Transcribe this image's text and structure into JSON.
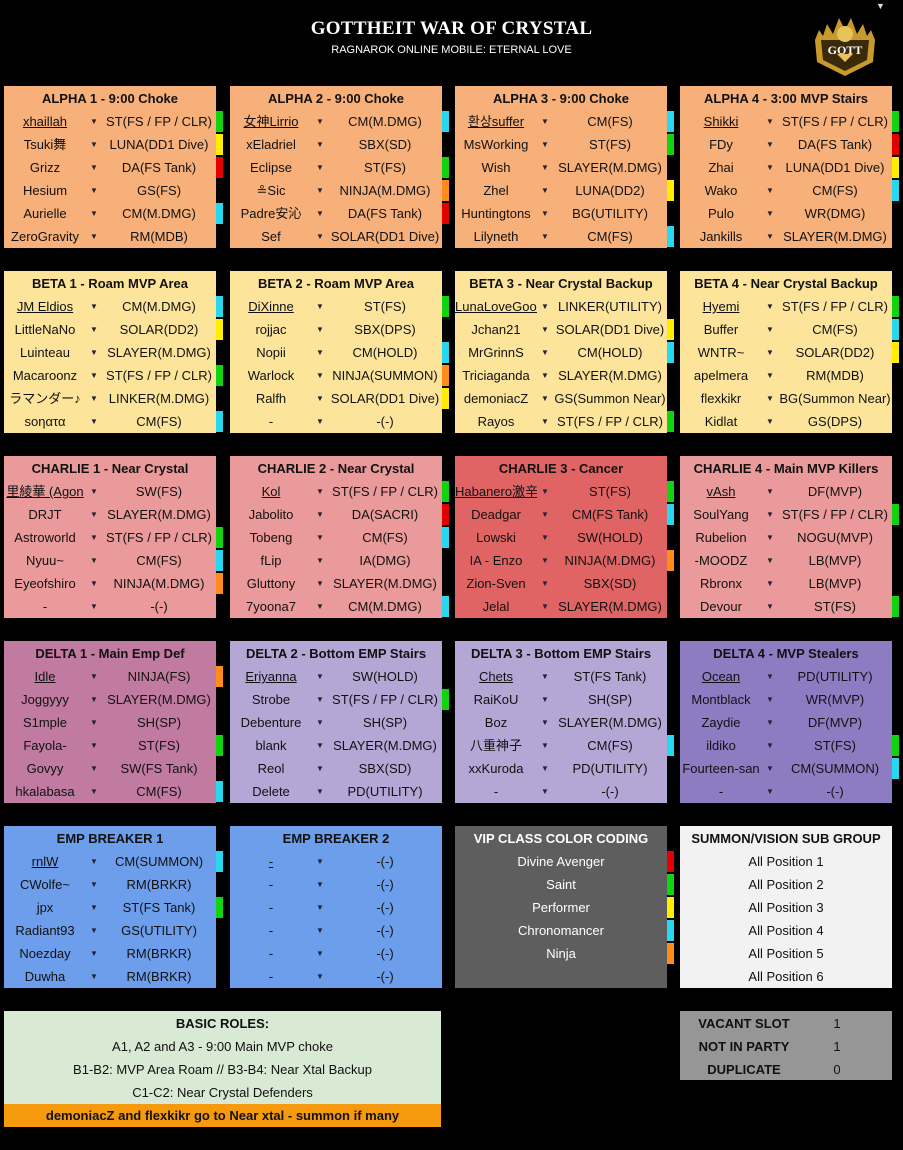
{
  "header": {
    "title": "GOTTHEIT WAR OF CRYSTAL",
    "subtitle": "RAGNAROK ONLINE MOBILE: ETERNAL LOVE",
    "logo_text": "GOTTHEIT"
  },
  "colors": {
    "alpha": "#f7b07a",
    "beta": "#fde49b",
    "charlie": "#ea9a9a",
    "charlie3": "#e06464",
    "delta1": "#c27ba0",
    "delta2": "#b4a7d6",
    "delta3": "#b4a7d6",
    "delta4": "#8e7cc3",
    "emp": "#6d9eeb",
    "vip_divine_avenger": "#e30000",
    "vip_saint": "#10d410",
    "vip_performer": "#ffee00",
    "vip_chronomancer": "#28d8ee",
    "vip_ninja": "#ff8c1a"
  },
  "panels": [
    {
      "title": "ALPHA 1 - 9:00 Choke",
      "color": "alpha",
      "rows": [
        {
          "name": "xhaillah",
          "role": "ST(FS / FP / CLR)",
          "mark": "saint",
          "u": true
        },
        {
          "name": "Tsuki舞",
          "role": "LUNA(DD1 Dive)",
          "mark": "performer"
        },
        {
          "name": "Grizz",
          "role": "DA(FS Tank)",
          "mark": "divine"
        },
        {
          "name": "Hesium",
          "role": "GS(FS)",
          "mark": ""
        },
        {
          "name": "Aurielle",
          "role": "CM(M.DMG)",
          "mark": "chrono"
        },
        {
          "name": "ZeroGravity",
          "role": "RM(MDB)",
          "mark": ""
        }
      ]
    },
    {
      "title": "ALPHA 2 - 9:00 Choke",
      "color": "alpha",
      "rows": [
        {
          "name": "女神Lirrio",
          "role": "CM(M.DMG)",
          "mark": "chrono",
          "u": true
        },
        {
          "name": "xEladriel",
          "role": "SBX(SD)",
          "mark": ""
        },
        {
          "name": "Eclipse",
          "role": "ST(FS)",
          "mark": "saint"
        },
        {
          "name": "≗Sic",
          "role": "NINJA(M.DMG)",
          "mark": "ninja"
        },
        {
          "name": "Padre安沁",
          "role": "DA(FS Tank)",
          "mark": "divine"
        },
        {
          "name": "Sef",
          "role": "SOLAR(DD1 Dive)",
          "mark": ""
        }
      ]
    },
    {
      "title": "ALPHA 3 - 9:00 Choke",
      "color": "alpha",
      "rows": [
        {
          "name": "환상suffer",
          "role": "CM(FS)",
          "mark": "chrono",
          "u": true
        },
        {
          "name": "MsWorking",
          "role": "ST(FS)",
          "mark": "saint"
        },
        {
          "name": "Wish",
          "role": "SLAYER(M.DMG)",
          "mark": ""
        },
        {
          "name": "Zhel",
          "role": "LUNA(DD2)",
          "mark": "performer"
        },
        {
          "name": "Huntingtons",
          "role": "BG(UTILITY)",
          "mark": ""
        },
        {
          "name": "Lilyneth",
          "role": "CM(FS)",
          "mark": "chrono"
        }
      ]
    },
    {
      "title": "ALPHA 4 - 3:00 MVP Stairs",
      "color": "alpha",
      "rows": [
        {
          "name": "Shikki",
          "role": "ST(FS / FP / CLR)",
          "mark": "saint",
          "u": true
        },
        {
          "name": "FDy",
          "role": "DA(FS Tank)",
          "mark": "divine"
        },
        {
          "name": "Zhai",
          "role": "LUNA(DD1 Dive)",
          "mark": "performer"
        },
        {
          "name": "Wako",
          "role": "CM(FS)",
          "mark": "chrono"
        },
        {
          "name": "Pulo",
          "role": "WR(DMG)",
          "mark": ""
        },
        {
          "name": "Jankills",
          "role": "SLAYER(M.DMG)",
          "mark": ""
        }
      ]
    },
    {
      "title": "BETA 1 - Roam MVP Area",
      "color": "beta",
      "rows": [
        {
          "name": "JM Eldios",
          "role": "CM(M.DMG)",
          "mark": "chrono",
          "u": true
        },
        {
          "name": "LittleNaNo",
          "role": "SOLAR(DD2)",
          "mark": "performer"
        },
        {
          "name": "Luinteau",
          "role": "SLAYER(M.DMG)",
          "mark": ""
        },
        {
          "name": "Macaroonz",
          "role": "ST(FS / FP / CLR)",
          "mark": "saint"
        },
        {
          "name": "ラマンダー♪",
          "role": "LINKER(M.DMG)",
          "mark": ""
        },
        {
          "name": "soηατα",
          "role": "CM(FS)",
          "mark": "chrono"
        }
      ]
    },
    {
      "title": "BETA 2 - Roam MVP Area",
      "color": "beta",
      "rows": [
        {
          "name": "DiXinne",
          "role": "ST(FS)",
          "mark": "saint",
          "u": true
        },
        {
          "name": "rojjac",
          "role": "SBX(DPS)",
          "mark": ""
        },
        {
          "name": "Nopii",
          "role": "CM(HOLD)",
          "mark": "chrono"
        },
        {
          "name": "Warlock",
          "role": "NINJA(SUMMON)",
          "mark": "ninja"
        },
        {
          "name": "Ralfh",
          "role": "SOLAR(DD1 Dive)",
          "mark": "performer"
        },
        {
          "name": "-",
          "role": "-(-)",
          "mark": ""
        }
      ]
    },
    {
      "title": "BETA 3 - Near Crystal Backup",
      "color": "beta",
      "rows": [
        {
          "name": "LunaLoveGood",
          "role": "LINKER(UTILITY)",
          "mark": "",
          "u": true
        },
        {
          "name": "Jchan21",
          "role": "SOLAR(DD1 Dive)",
          "mark": "performer"
        },
        {
          "name": "MrGrinnS",
          "role": "CM(HOLD)",
          "mark": "chrono"
        },
        {
          "name": "Triciaganda",
          "role": "SLAYER(M.DMG)",
          "mark": ""
        },
        {
          "name": "demoniacZ",
          "role": "GS(Summon Near)",
          "mark": ""
        },
        {
          "name": "Rayos",
          "role": "ST(FS / FP / CLR)",
          "mark": "saint"
        }
      ]
    },
    {
      "title": "BETA 4 - Near Crystal Backup",
      "color": "beta",
      "rows": [
        {
          "name": "Hyemi",
          "role": "ST(FS / FP / CLR)",
          "mark": "saint",
          "u": true
        },
        {
          "name": "Buffer",
          "role": "CM(FS)",
          "mark": "chrono"
        },
        {
          "name": "WNTR~",
          "role": "SOLAR(DD2)",
          "mark": "performer"
        },
        {
          "name": "apelmera",
          "role": "RM(MDB)",
          "mark": ""
        },
        {
          "name": "flexkikr",
          "role": "BG(Summon Near)",
          "mark": ""
        },
        {
          "name": "Kidlat",
          "role": "GS(DPS)",
          "mark": ""
        }
      ]
    },
    {
      "title": "CHARLIE 1 - Near Crystal",
      "color": "charlie",
      "rows": [
        {
          "name": "里綾華 (Agon",
          "role": "SW(FS)",
          "mark": "",
          "u": true
        },
        {
          "name": "DRJT",
          "role": "SLAYER(M.DMG)",
          "mark": ""
        },
        {
          "name": "Astroworld",
          "role": "ST(FS / FP / CLR)",
          "mark": "saint"
        },
        {
          "name": "Nyuu~",
          "role": "CM(FS)",
          "mark": "chrono"
        },
        {
          "name": "Eyeofshiro",
          "role": "NINJA(M.DMG)",
          "mark": "ninja"
        },
        {
          "name": "-",
          "role": "-(-)",
          "mark": ""
        }
      ]
    },
    {
      "title": "CHARLIE 2 - Near Crystal",
      "color": "charlie",
      "rows": [
        {
          "name": "Kol",
          "role": "ST(FS / FP / CLR)",
          "mark": "saint",
          "u": true
        },
        {
          "name": "Jabolito",
          "role": "DA(SACRI)",
          "mark": "divine"
        },
        {
          "name": "Tobeng",
          "role": "CM(FS)",
          "mark": "chrono"
        },
        {
          "name": "fLip",
          "role": "IA(DMG)",
          "mark": ""
        },
        {
          "name": "Gluttony",
          "role": "SLAYER(M.DMG)",
          "mark": ""
        },
        {
          "name": "7yoona7",
          "role": "CM(M.DMG)",
          "mark": "chrono"
        }
      ]
    },
    {
      "title": "CHARLIE 3 - Cancer",
      "color": "charlie3",
      "rows": [
        {
          "name": "Habanero激辛",
          "role": "ST(FS)",
          "mark": "saint",
          "u": true
        },
        {
          "name": "Deadgar",
          "role": "CM(FS Tank)",
          "mark": "chrono"
        },
        {
          "name": "Lowski",
          "role": "SW(HOLD)",
          "mark": ""
        },
        {
          "name": "IA - Enzo",
          "role": "NINJA(M.DMG)",
          "mark": "ninja"
        },
        {
          "name": "Zion-Sven",
          "role": "SBX(SD)",
          "mark": ""
        },
        {
          "name": "Jelal",
          "role": "SLAYER(M.DMG)",
          "mark": ""
        }
      ]
    },
    {
      "title": "CHARLIE 4 - Main MVP Killers",
      "color": "charlie",
      "rows": [
        {
          "name": "vAsh",
          "role": "DF(MVP)",
          "mark": "",
          "u": true
        },
        {
          "name": "SoulYang",
          "role": "ST(FS / FP / CLR)",
          "mark": "saint"
        },
        {
          "name": "Rubelion",
          "role": "NOGU(MVP)",
          "mark": ""
        },
        {
          "name": "-MOODZ",
          "role": "LB(MVP)",
          "mark": ""
        },
        {
          "name": "Rbronx",
          "role": "LB(MVP)",
          "mark": ""
        },
        {
          "name": "Devour",
          "role": "ST(FS)",
          "mark": "saint"
        }
      ]
    },
    {
      "title": "DELTA 1 - Main Emp Def",
      "color": "delta1",
      "rows": [
        {
          "name": "Idle",
          "role": "NINJA(FS)",
          "mark": "ninja",
          "u": true
        },
        {
          "name": "Joggyyy",
          "role": "SLAYER(M.DMG)",
          "mark": ""
        },
        {
          "name": "S1mple",
          "role": "SH(SP)",
          "mark": ""
        },
        {
          "name": "Fayola-",
          "role": "ST(FS)",
          "mark": "saint"
        },
        {
          "name": "Govyy",
          "role": "SW(FS Tank)",
          "mark": ""
        },
        {
          "name": "hkalabasa",
          "role": "CM(FS)",
          "mark": "chrono"
        }
      ]
    },
    {
      "title": "DELTA 2 - Bottom EMP Stairs",
      "color": "delta2",
      "rows": [
        {
          "name": "Eriyanna",
          "role": "SW(HOLD)",
          "mark": "",
          "u": true
        },
        {
          "name": "Strobe",
          "role": "ST(FS / FP / CLR)",
          "mark": "saint"
        },
        {
          "name": "Debenture",
          "role": "SH(SP)",
          "mark": ""
        },
        {
          "name": "blank",
          "role": "SLAYER(M.DMG)",
          "mark": ""
        },
        {
          "name": "Reol",
          "role": "SBX(SD)",
          "mark": ""
        },
        {
          "name": "Delete",
          "role": "PD(UTILITY)",
          "mark": ""
        }
      ]
    },
    {
      "title": "DELTA 3 - Bottom EMP Stairs",
      "color": "delta3",
      "rows": [
        {
          "name": "Chets",
          "role": "ST(FS Tank)",
          "mark": "",
          "u": true
        },
        {
          "name": "RaiKoU",
          "role": "SH(SP)",
          "mark": ""
        },
        {
          "name": "Boz",
          "role": "SLAYER(M.DMG)",
          "mark": ""
        },
        {
          "name": "八重神子",
          "role": "CM(FS)",
          "mark": "chrono"
        },
        {
          "name": "xxKuroda",
          "role": "PD(UTILITY)",
          "mark": ""
        },
        {
          "name": "-",
          "role": "-(-)",
          "mark": ""
        }
      ]
    },
    {
      "title": "DELTA 4 - MVP Stealers",
      "color": "delta4",
      "rows": [
        {
          "name": "Ocean",
          "role": "PD(UTILITY)",
          "mark": "",
          "u": true
        },
        {
          "name": "Montblack",
          "role": "WR(MVP)",
          "mark": ""
        },
        {
          "name": "Zaydie",
          "role": "DF(MVP)",
          "mark": ""
        },
        {
          "name": "ildiko",
          "role": "ST(FS)",
          "mark": "saint"
        },
        {
          "name": "Fourteen-san",
          "role": "CM(SUMMON)",
          "mark": "chrono"
        },
        {
          "name": "-",
          "role": "-(-)",
          "mark": ""
        }
      ]
    },
    {
      "title": "EMP BREAKER 1",
      "color": "emp",
      "rows": [
        {
          "name": "rnlW",
          "role": "CM(SUMMON)",
          "mark": "chrono",
          "u": true
        },
        {
          "name": "CWolfe~",
          "role": "RM(BRKR)",
          "mark": ""
        },
        {
          "name": "jpx",
          "role": "ST(FS Tank)",
          "mark": "saint"
        },
        {
          "name": "Radiant93",
          "role": "GS(UTILITY)",
          "mark": ""
        },
        {
          "name": "Noezday",
          "role": "RM(BRKR)",
          "mark": ""
        },
        {
          "name": "Duwha",
          "role": "RM(BRKR)",
          "mark": ""
        }
      ]
    },
    {
      "title": "EMP BREAKER 2",
      "color": "emp",
      "rows": [
        {
          "name": "-",
          "role": "-(-)",
          "mark": "",
          "u": true
        },
        {
          "name": "-",
          "role": "-(-)",
          "mark": ""
        },
        {
          "name": "-",
          "role": "-(-)",
          "mark": ""
        },
        {
          "name": "-",
          "role": "-(-)",
          "mark": ""
        },
        {
          "name": "-",
          "role": "-(-)",
          "mark": ""
        },
        {
          "name": "-",
          "role": "-(-)",
          "mark": ""
        }
      ]
    }
  ],
  "vip": {
    "title": "VIP CLASS COLOR CODING",
    "items": [
      {
        "label": "Divine Avenger",
        "mark": "divine"
      },
      {
        "label": "Saint",
        "mark": "saint"
      },
      {
        "label": "Performer",
        "mark": "performer"
      },
      {
        "label": "Chronomancer",
        "mark": "chrono"
      },
      {
        "label": "Ninja",
        "mark": "ninja"
      }
    ]
  },
  "summon": {
    "title": "SUMMON/VISION SUB GROUP",
    "items": [
      "All Position 1",
      "All Position 2",
      "All Position 3",
      "All Position 4",
      "All Position 5",
      "All Position 6"
    ]
  },
  "roles": {
    "title": "BASIC ROLES:",
    "lines": [
      "A1, A2 and A3 - 9:00 Main MVP choke",
      "B1-B2: MVP Area Roam // B3-B4: Near Xtal Backup",
      "C1-C2: Near Crystal Defenders"
    ],
    "note": "demoniacZ and flexkikr go to Near xtal - summon if many"
  },
  "counts": [
    {
      "label": "VACANT SLOT",
      "value": "1"
    },
    {
      "label": "NOT IN PARTY",
      "value": "1"
    },
    {
      "label": "DUPLICATE",
      "value": "0"
    }
  ]
}
